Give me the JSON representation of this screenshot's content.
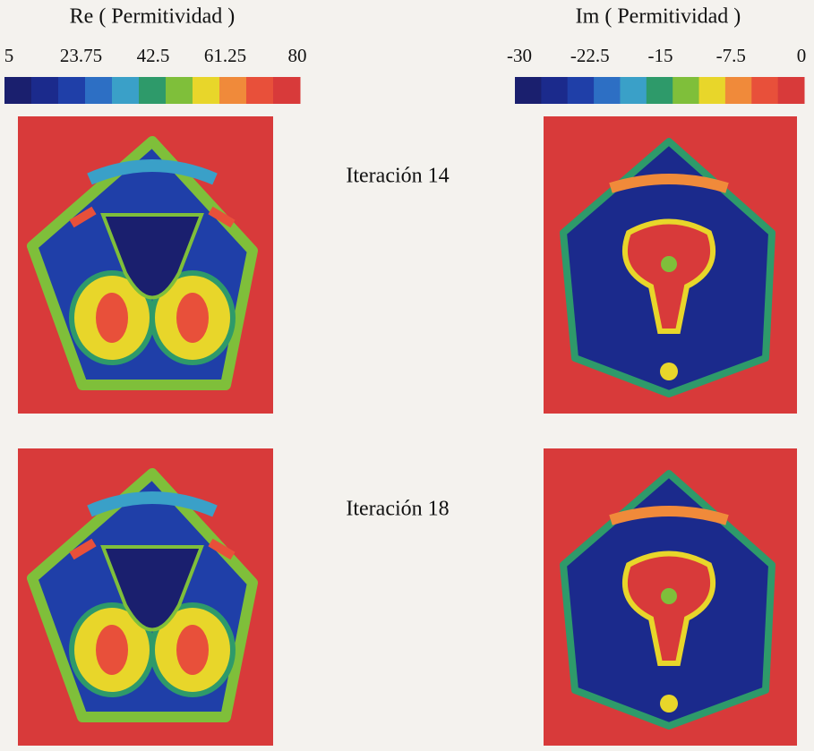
{
  "colorbars": [
    {
      "title": "Re ( Permitividad )",
      "lim": [
        5,
        80
      ],
      "ticks": [
        5,
        23.75,
        42.5,
        61.25,
        80
      ]
    },
    {
      "title": "Im ( Permitividad )",
      "lim": [
        -30,
        0
      ],
      "ticks": [
        -30,
        -22.5,
        -15,
        -7.5,
        0
      ]
    }
  ],
  "colormap": [
    "#1a1f6e",
    "#1b2a8c",
    "#1f3fa8",
    "#2d6fc4",
    "#3aa0c8",
    "#2e9a6a",
    "#7fbf3a",
    "#e8d62a",
    "#f08a3a",
    "#e8503a",
    "#d83a3a"
  ],
  "panels": [
    {
      "label": "Iteración 14"
    },
    {
      "label": "Iteración 18"
    }
  ]
}
